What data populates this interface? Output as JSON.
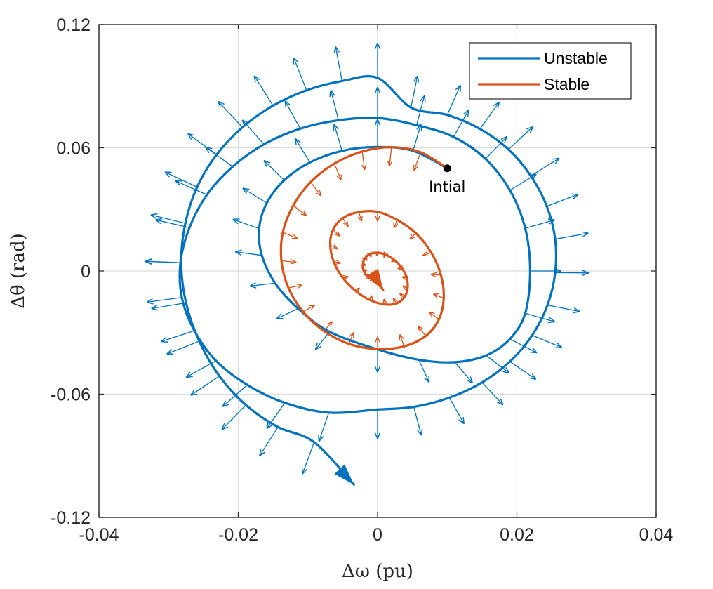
{
  "chart_data": {
    "type": "line",
    "title": "",
    "xlabel": "Δω (pu)",
    "ylabel": "Δθ (rad)",
    "xlim": [
      -0.04,
      0.04
    ],
    "ylim": [
      -0.12,
      0.12
    ],
    "xticks": [
      -0.04,
      -0.02,
      0,
      0.02,
      0.04
    ],
    "xtick_labels": [
      "-0.04",
      "-0.02",
      "0",
      "0.02",
      "0.04"
    ],
    "yticks": [
      -0.12,
      -0.06,
      0,
      0.06,
      0.12
    ],
    "ytick_labels": [
      "-0.12",
      "-0.06",
      "0",
      "0.06",
      "0.12"
    ],
    "grid": true,
    "legend_position": "top-right",
    "series": [
      {
        "name": "Unstable",
        "color": "#0072BD",
        "style": "outward spiral with vector-field arrows",
        "x": [
          0.01,
          0.0051,
          0,
          -0.0051,
          -0.0097,
          -0.0134,
          -0.0159,
          -0.017,
          -0.0166,
          -0.0147,
          -0.0114,
          -0.0069,
          0,
          0.0059,
          0.0111,
          0.0156,
          0.019,
          0.0212,
          0.0219,
          0.0212,
          0.019,
          0.0155,
          0.0109,
          0.0056,
          0,
          -0.0056,
          -0.0111,
          -0.0163,
          -0.0208,
          -0.0245,
          -0.027,
          -0.0283,
          -0.0281,
          -0.0263,
          -0.0232,
          -0.0187,
          -0.0133,
          -0.007,
          0.0,
          0.0052,
          0.0103,
          0.015,
          0.019,
          0.0222,
          0.0244,
          0.0255,
          0.0255,
          0.0243,
          0.022,
          0.0188,
          0.0147,
          0.01,
          0.0048,
          0,
          -0.0051,
          -0.0102,
          -0.015,
          -0.0194,
          -0.0231,
          -0.0259,
          -0.0276,
          -0.0282,
          -0.0275,
          -0.0256,
          -0.0227,
          -0.0189,
          -0.0143,
          -0.0091,
          -0.0034
        ],
        "y": [
          0.05,
          0.0585,
          0.0604,
          0.0585,
          0.0529,
          0.0442,
          0.0331,
          0.0206,
          0.0076,
          -0.0059,
          -0.0183,
          -0.0296,
          -0.0382,
          -0.0432,
          -0.0444,
          -0.0411,
          -0.0331,
          -0.0206,
          0,
          0.0208,
          0.0393,
          0.0546,
          0.0653,
          0.071,
          0.0745,
          0.0734,
          0.0693,
          0.0617,
          0.0508,
          0.0371,
          0.0211,
          0.004,
          -0.0129,
          -0.0291,
          -0.0437,
          -0.0555,
          -0.0642,
          -0.069,
          -0.0675,
          -0.0662,
          -0.0617,
          -0.0543,
          -0.0441,
          -0.0313,
          -0.0166,
          -0.0008,
          0.0155,
          0.0315,
          0.0463,
          0.0592,
          0.0692,
          0.076,
          0.0796,
          0.094,
          0.0925,
          0.088,
          0.0805,
          0.07,
          0.0567,
          0.0409,
          0.0232,
          0.004,
          -0.0155,
          -0.0342,
          -0.0512,
          -0.0653,
          -0.076,
          -0.0834,
          -0.104
        ]
      },
      {
        "name": "Stable",
        "color": "#D95319",
        "style": "inward spiral with vector-field arrows",
        "x": [
          0.01,
          0.0062,
          0.002,
          -0.0022,
          -0.0062,
          -0.0096,
          -0.0121,
          -0.0136,
          -0.0138,
          -0.0128,
          -0.0107,
          -0.0077,
          -0.0041,
          0.0,
          0.0038,
          0.0069,
          0.0088,
          0.0095,
          0.0091,
          0.0077,
          0.0055,
          0.0028,
          0,
          -0.0027,
          -0.005,
          -0.0064,
          -0.0068,
          -0.0063,
          -0.005,
          -0.0031,
          -0.001,
          0.0011,
          0.0027,
          0.0038,
          0.0043,
          0.0042,
          0.0035,
          0.0024,
          0.0011,
          -0.0001,
          -0.0011,
          -0.0018,
          -0.0021,
          -0.002,
          -0.0015,
          -0.0007,
          0.0001,
          0.0008
        ],
        "y": [
          0.05,
          0.0578,
          0.0603,
          0.0582,
          0.0523,
          0.0433,
          0.0319,
          0.0188,
          0.005,
          -0.0082,
          -0.0198,
          -0.0292,
          -0.0355,
          -0.038,
          -0.0367,
          -0.0317,
          -0.0236,
          -0.0133,
          -0.002,
          0.009,
          0.0184,
          0.0249,
          0.0288,
          0.0287,
          0.0257,
          0.0201,
          0.0127,
          0.0045,
          -0.0033,
          -0.0098,
          -0.0143,
          -0.0163,
          -0.0158,
          -0.013,
          -0.0086,
          -0.0035,
          0.0014,
          0.0054,
          0.008,
          0.0089,
          0.0082,
          0.0062,
          0.0034,
          0.0003,
          -0.0025,
          -0.0044,
          -0.0055,
          -0.0094
        ]
      }
    ],
    "annotations": [
      {
        "text": "Intial",
        "x": 0.01,
        "y": 0.05,
        "marker": "filled-circle"
      }
    ]
  }
}
